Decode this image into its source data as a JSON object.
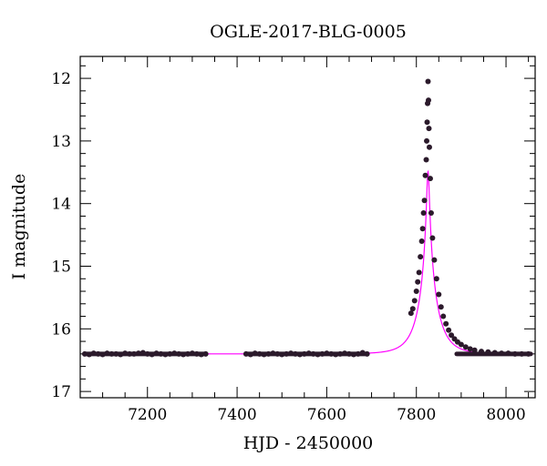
{
  "chart_data": {
    "type": "scatter",
    "title": "OGLE-2017-BLG-0005",
    "xlabel": "HJD - 2450000",
    "ylabel": "I magnitude",
    "xlim": [
      7050,
      8065
    ],
    "ylim": [
      17.1,
      11.65
    ],
    "y_inverted": true,
    "x_ticks": [
      7200,
      7400,
      7600,
      7800,
      8000
    ],
    "y_ticks": [
      12,
      13,
      14,
      15,
      16,
      17
    ],
    "grid": false,
    "legend": "none",
    "colors": {
      "points": "#2b1a2b",
      "model": "#ff00ff",
      "axes": "#000000"
    },
    "model": {
      "t0": 7826,
      "u0": 0.068,
      "tE": 40,
      "baseline": 16.4
    },
    "series": [
      {
        "values": [
          [
            7060,
            16.4
          ],
          [
            7070,
            16.41
          ],
          [
            7080,
            16.39
          ],
          [
            7090,
            16.4
          ],
          [
            7100,
            16.41
          ],
          [
            7110,
            16.39
          ],
          [
            7120,
            16.4
          ],
          [
            7130,
            16.4
          ],
          [
            7140,
            16.41
          ],
          [
            7150,
            16.39
          ],
          [
            7160,
            16.4
          ],
          [
            7170,
            16.4
          ],
          [
            7180,
            16.39
          ],
          [
            7190,
            16.38
          ],
          [
            7200,
            16.4
          ],
          [
            7210,
            16.41
          ],
          [
            7220,
            16.39
          ],
          [
            7230,
            16.4
          ],
          [
            7240,
            16.41
          ],
          [
            7250,
            16.4
          ],
          [
            7260,
            16.39
          ],
          [
            7270,
            16.4
          ],
          [
            7280,
            16.41
          ],
          [
            7290,
            16.4
          ],
          [
            7300,
            16.39
          ],
          [
            7310,
            16.4
          ],
          [
            7320,
            16.41
          ],
          [
            7330,
            16.4
          ],
          [
            7420,
            16.4
          ],
          [
            7430,
            16.41
          ],
          [
            7440,
            16.39
          ],
          [
            7450,
            16.4
          ],
          [
            7460,
            16.41
          ],
          [
            7470,
            16.4
          ],
          [
            7480,
            16.39
          ],
          [
            7490,
            16.4
          ],
          [
            7500,
            16.41
          ],
          [
            7510,
            16.4
          ],
          [
            7520,
            16.39
          ],
          [
            7530,
            16.4
          ],
          [
            7540,
            16.41
          ],
          [
            7550,
            16.4
          ],
          [
            7560,
            16.39
          ],
          [
            7570,
            16.4
          ],
          [
            7580,
            16.41
          ],
          [
            7590,
            16.4
          ],
          [
            7600,
            16.39
          ],
          [
            7610,
            16.4
          ],
          [
            7620,
            16.41
          ],
          [
            7630,
            16.4
          ],
          [
            7640,
            16.39
          ],
          [
            7650,
            16.4
          ],
          [
            7660,
            16.41
          ],
          [
            7670,
            16.4
          ],
          [
            7680,
            16.38
          ],
          [
            7690,
            16.4
          ],
          [
            7788,
            15.75
          ],
          [
            7792,
            15.68
          ],
          [
            7796,
            15.55
          ],
          [
            7800,
            15.4
          ],
          [
            7803,
            15.25
          ],
          [
            7806,
            15.1
          ],
          [
            7809,
            14.85
          ],
          [
            7812,
            14.6
          ],
          [
            7814,
            14.4
          ],
          [
            7816,
            14.15
          ],
          [
            7818,
            13.95
          ],
          [
            7820,
            13.55
          ],
          [
            7822,
            13.3
          ],
          [
            7823,
            13.0
          ],
          [
            7824,
            12.7
          ],
          [
            7825,
            12.4
          ],
          [
            7826,
            12.05
          ],
          [
            7827,
            12.35
          ],
          [
            7828,
            12.8
          ],
          [
            7829,
            13.1
          ],
          [
            7831,
            13.6
          ],
          [
            7833,
            14.15
          ],
          [
            7836,
            14.55
          ],
          [
            7840,
            14.9
          ],
          [
            7845,
            15.2
          ],
          [
            7850,
            15.45
          ],
          [
            7855,
            15.65
          ],
          [
            7860,
            15.8
          ],
          [
            7866,
            15.92
          ],
          [
            7872,
            16.02
          ],
          [
            7878,
            16.1
          ],
          [
            7885,
            16.16
          ],
          [
            7892,
            16.21
          ],
          [
            7900,
            16.25
          ],
          [
            7910,
            16.29
          ],
          [
            7920,
            16.32
          ],
          [
            7930,
            16.34
          ],
          [
            7945,
            16.36
          ],
          [
            7960,
            16.37
          ],
          [
            7975,
            16.38
          ],
          [
            7990,
            16.39
          ],
          [
            8005,
            16.39
          ],
          [
            8020,
            16.4
          ],
          [
            8035,
            16.4
          ],
          [
            8050,
            16.4
          ]
        ]
      }
    ]
  }
}
